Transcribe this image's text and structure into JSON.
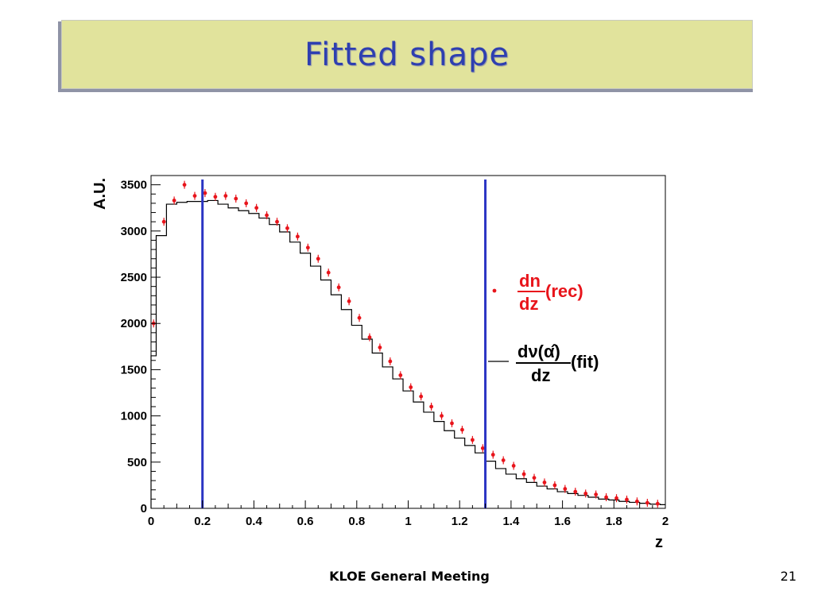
{
  "slide": {
    "title": "Fitted shape",
    "footer": "KLOE General Meeting",
    "page_number": "21"
  },
  "colors": {
    "title_bg": "#e1e39c",
    "title_text": "#2e3fb0",
    "data_points": "#e8141b",
    "fit_line": "#000000",
    "cut_lines": "#2b35c4"
  },
  "chart_data": {
    "type": "line",
    "title": "",
    "xlabel": "z",
    "ylabel": "A.U.",
    "xlim": [
      0,
      2
    ],
    "ylim": [
      0,
      3500
    ],
    "xticks": [
      "0",
      "0.2",
      "0.4",
      "0.6",
      "0.8",
      "1",
      "1.2",
      "1.4",
      "1.6",
      "1.8",
      "2"
    ],
    "yticks": [
      "0",
      "500",
      "1000",
      "1500",
      "2000",
      "2500",
      "3000",
      "3500"
    ],
    "legend": {
      "placement": "right",
      "entries": [
        {
          "name_num": "dn",
          "name_den": "dz",
          "name_suffix": "(rec)",
          "marker": "point",
          "color": "#e8141b"
        },
        {
          "name_num": "dν(α̂)",
          "name_den": "dz",
          "name_suffix": "(fit)",
          "marker": "line",
          "color": "#000000"
        }
      ]
    },
    "vertical_lines": [
      0.2,
      1.3
    ],
    "series": [
      {
        "kind": "points",
        "x": [
          0.01,
          0.05,
          0.09,
          0.13,
          0.17,
          0.21,
          0.25,
          0.29,
          0.33,
          0.37,
          0.41,
          0.45,
          0.49,
          0.53,
          0.57,
          0.61,
          0.65,
          0.69,
          0.73,
          0.77,
          0.81,
          0.85,
          0.89,
          0.93,
          0.97,
          1.01,
          1.05,
          1.09,
          1.13,
          1.17,
          1.21,
          1.25,
          1.29,
          1.33,
          1.37,
          1.41,
          1.45,
          1.49,
          1.53,
          1.57,
          1.61,
          1.65,
          1.69,
          1.73,
          1.77,
          1.81,
          1.85,
          1.89,
          1.93,
          1.97
        ],
        "y": [
          2000,
          3100,
          3330,
          3500,
          3380,
          3410,
          3370,
          3380,
          3350,
          3300,
          3250,
          3170,
          3100,
          3030,
          2940,
          2820,
          2700,
          2550,
          2390,
          2240,
          2060,
          1850,
          1740,
          1590,
          1440,
          1310,
          1210,
          1100,
          1000,
          920,
          850,
          740,
          650,
          580,
          520,
          460,
          370,
          330,
          280,
          250,
          210,
          180,
          160,
          150,
          120,
          110,
          95,
          75,
          60,
          50
        ]
      },
      {
        "kind": "step",
        "edges": [
          0,
          0.02,
          0.06,
          0.1,
          0.14,
          0.18,
          0.22,
          0.26,
          0.3,
          0.34,
          0.38,
          0.42,
          0.46,
          0.5,
          0.54,
          0.58,
          0.62,
          0.66,
          0.7,
          0.74,
          0.78,
          0.82,
          0.86,
          0.9,
          0.94,
          0.98,
          1.02,
          1.06,
          1.1,
          1.14,
          1.18,
          1.22,
          1.26,
          1.3,
          1.34,
          1.38,
          1.42,
          1.46,
          1.5,
          1.54,
          1.58,
          1.62,
          1.66,
          1.7,
          1.74,
          1.78,
          1.82,
          1.86,
          1.9,
          1.94,
          1.98,
          2.0
        ],
        "y": [
          1650,
          2950,
          3290,
          3310,
          3320,
          3320,
          3330,
          3290,
          3250,
          3220,
          3190,
          3140,
          3070,
          2990,
          2880,
          2760,
          2620,
          2470,
          2310,
          2150,
          1980,
          1830,
          1680,
          1530,
          1400,
          1270,
          1150,
          1040,
          940,
          840,
          760,
          680,
          600,
          510,
          430,
          370,
          320,
          280,
          240,
          210,
          180,
          160,
          140,
          120,
          100,
          90,
          75,
          65,
          55,
          45,
          40
        ]
      }
    ]
  }
}
